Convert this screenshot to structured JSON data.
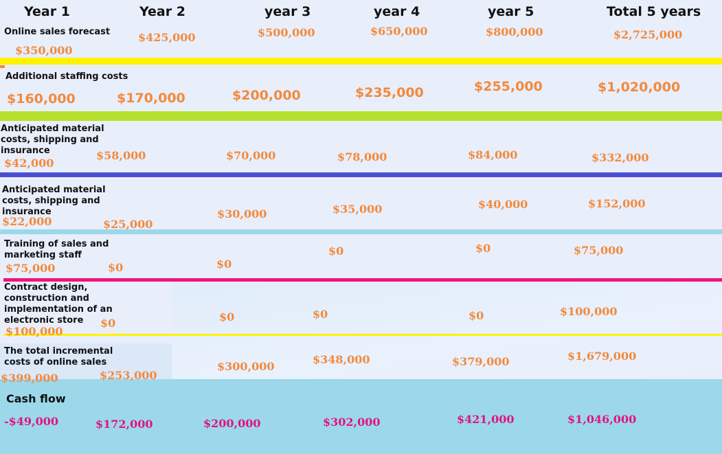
{
  "headers": [
    "Year 1",
    "Year 2",
    "year 3",
    "year 4",
    "year 5",
    "Total 5 years"
  ],
  "rows": [
    {
      "label": "Online sales forecast",
      "values": [
        "$350,000",
        "$425,000",
        "$500,000",
        "$650,000",
        "$800,000",
        "$2,725,000"
      ]
    },
    {
      "label": "Additional staffing costs",
      "values": [
        "$160,000",
        "$170,000",
        "$200,000",
        "$235,000",
        "$255,000",
        "$1,020,000"
      ]
    },
    {
      "label": "Anticipated material costs, shipping and insurance",
      "values": [
        "$42,000",
        "$58,000",
        "$70,000",
        "$78,000",
        "$84,000",
        "$332,000"
      ]
    },
    {
      "label": "Anticipated material costs, shipping and insurance",
      "values": [
        "$22,000",
        "$25,000",
        "$30,000",
        "$35,000",
        "$40,000",
        "$152,000"
      ]
    },
    {
      "label": "Training of sales and marketing staff",
      "values": [
        "$75,000",
        "$0",
        "$0",
        "$0",
        "$0",
        "$75,000"
      ]
    },
    {
      "label": "Contract design, construction and implementation of an electronic store",
      "values": [
        "$100,000",
        "$0",
        "$0",
        "$0",
        "$0",
        "$100,000"
      ]
    },
    {
      "label": "The total incremental costs of online sales",
      "values": [
        "$399,000",
        "$253,000",
        "$300,000",
        "$348,000",
        "$379,000",
        "$1,679,000"
      ]
    }
  ],
  "cash_flow": {
    "label": "Cash flow",
    "values": [
      "-$49,000",
      "$172,000",
      "$200,000",
      "$302,000",
      "$421,000",
      "$1,046,000"
    ]
  },
  "colors": {
    "background": "#e9eefb",
    "value_orange": "#f28a3c",
    "cash_pink": "#e0147f",
    "sep_yellow": "#fff200",
    "sep_lime": "#b5e02b",
    "sep_blue": "#4a4fd0",
    "sep_lightblue": "#9cd8e9",
    "sep_magenta": "#f0147a",
    "cash_band": "#9cd8e9"
  }
}
